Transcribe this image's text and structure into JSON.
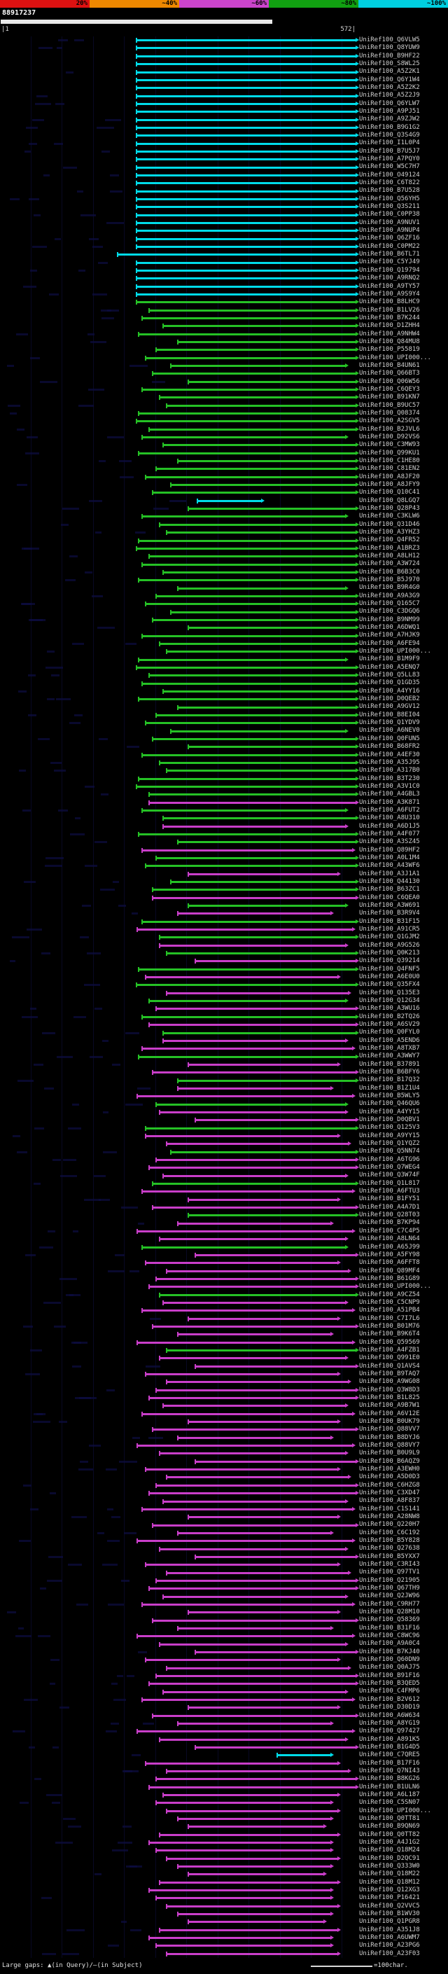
{
  "colorbar": {
    "segments": [
      {
        "label": "20%",
        "color": "#dd1111"
      },
      {
        "label": "~40%",
        "color": "#ee8800"
      },
      {
        "label": "~60%",
        "color": "#cc44cc"
      },
      {
        "label": "~80%",
        "color": "#11a011"
      },
      {
        "label": "~100%",
        "color": "#00cfe0"
      }
    ]
  },
  "header": {
    "query_id": "88917237",
    "ruler_start": "|1",
    "ruler_end": "572|"
  },
  "footer": {
    "gaps_note": "Large gaps: ▲(in Query)/—(in Subject)",
    "scale_note": "=100char."
  },
  "colors": {
    "c": "#00dbe8",
    "g": "#25c125",
    "m": "#c93ec9",
    "query": "#e9e9e9",
    "label": "#cfcfcf"
  },
  "chart_data": {
    "type": "bar",
    "orientation": "horizontal",
    "x_range": [
      1,
      572
    ],
    "grid_interval_chars": 50,
    "identity_scale": [
      {
        "max_pct": 20,
        "color": "red"
      },
      {
        "max_pct": 40,
        "color": "orange"
      },
      {
        "max_pct": 60,
        "color": "magenta"
      },
      {
        "max_pct": 80,
        "color": "green"
      },
      {
        "max_pct": 100,
        "color": "cyan"
      }
    ],
    "label_prefix": "UniRef100_",
    "hit_fields": [
      "id",
      "identity_bin",
      "query_start",
      "query_end"
    ],
    "hits": [
      [
        "Q6VLW5",
        "c",
        220,
        572
      ],
      [
        "Q8YUW9",
        "c",
        220,
        572
      ],
      [
        "B9HF22",
        "c",
        220,
        572
      ],
      [
        "S8WL25",
        "c",
        220,
        572
      ],
      [
        "A5Z2K1",
        "c",
        220,
        572
      ],
      [
        "Q6Y1W4",
        "c",
        220,
        572
      ],
      [
        "A5Z2K2",
        "c",
        220,
        572
      ],
      [
        "A5Z2J9",
        "c",
        220,
        572
      ],
      [
        "Q6YLW7",
        "c",
        220,
        572
      ],
      [
        "A9PJ51",
        "c",
        220,
        572
      ],
      [
        "A9ZJW2",
        "c",
        220,
        572
      ],
      [
        "B9G1G2",
        "c",
        220,
        572
      ],
      [
        "Q3S4G9",
        "c",
        220,
        572
      ],
      [
        "I1L0P4",
        "c",
        220,
        572
      ],
      [
        "B7U5J7",
        "c",
        220,
        572
      ],
      [
        "A7PQY0",
        "c",
        220,
        572
      ],
      [
        "W5C7H7",
        "c",
        220,
        572
      ],
      [
        "O49124",
        "c",
        220,
        572
      ],
      [
        "C6T822",
        "c",
        220,
        572
      ],
      [
        "B7U528",
        "c",
        220,
        572
      ],
      [
        "Q56YH5",
        "c",
        220,
        572
      ],
      [
        "Q3S211",
        "c",
        220,
        572
      ],
      [
        "C0PP38",
        "c",
        220,
        572
      ],
      [
        "A9NUV1",
        "c",
        220,
        572
      ],
      [
        "A9NUP4",
        "c",
        220,
        572
      ],
      [
        "Q6ZF16",
        "c",
        220,
        572
      ],
      [
        "C0PM22",
        "c",
        220,
        572
      ],
      [
        "B6TL71",
        "c",
        190,
        572
      ],
      [
        "C5YJ49",
        "c",
        220,
        572
      ],
      [
        "Q19794",
        "c",
        220,
        572
      ],
      [
        "A9RNQ2",
        "c",
        220,
        572
      ],
      [
        "A9TY57",
        "c",
        220,
        572
      ],
      [
        "A9S9Y4",
        "c",
        220,
        572
      ],
      [
        "B8LHC9",
        "g",
        220,
        572
      ],
      [
        "B1LV26",
        "g",
        240,
        572
      ],
      [
        "B7K244",
        "g",
        229,
        572
      ],
      [
        "D1ZHH4",
        "g",
        263,
        572
      ],
      [
        "A9NHW4",
        "g",
        223,
        572
      ],
      [
        "Q84MU8",
        "g",
        286,
        572
      ],
      [
        "P55819",
        "g",
        252,
        572
      ],
      [
        "UPI000...",
        "g",
        235,
        572
      ],
      [
        "B4UN61",
        "g",
        275,
        555
      ],
      [
        "Q66BT3",
        "g",
        246,
        572
      ],
      [
        "Q06W56",
        "g",
        303,
        572
      ],
      [
        "C6QEY3",
        "g",
        229,
        572
      ],
      [
        "B91KN7",
        "g",
        257,
        572
      ],
      [
        "B9UC57",
        "g",
        269,
        572
      ],
      [
        "Q08374",
        "g",
        223,
        572
      ],
      [
        "A2SGV5",
        "g",
        220,
        572
      ],
      [
        "B2JVL6",
        "g",
        240,
        572
      ],
      [
        "D92VS6",
        "g",
        229,
        555
      ],
      [
        "C3MW93",
        "g",
        263,
        572
      ],
      [
        "Q99KU1",
        "g",
        223,
        572
      ],
      [
        "C1HE80",
        "g",
        286,
        572
      ],
      [
        "C81EN2",
        "g",
        252,
        572
      ],
      [
        "A8JF20",
        "g",
        235,
        572
      ],
      [
        "A8JFY9",
        "g",
        275,
        572
      ],
      [
        "Q10C41",
        "g",
        246,
        572
      ],
      [
        "Q8LGQ7",
        "c",
        318,
        420
      ],
      [
        "Q28P43",
        "g",
        303,
        572
      ],
      [
        "C3KLW6",
        "g",
        229,
        555
      ],
      [
        "Q31D46",
        "g",
        257,
        572
      ],
      [
        "A3YHZ3",
        "g",
        269,
        572
      ],
      [
        "Q4FR52",
        "g",
        223,
        572
      ],
      [
        "A1BRZ3",
        "g",
        220,
        572
      ],
      [
        "A8LH12",
        "g",
        240,
        572
      ],
      [
        "A3W724",
        "g",
        229,
        572
      ],
      [
        "B6B3C0",
        "g",
        263,
        572
      ],
      [
        "B5J970",
        "g",
        223,
        572
      ],
      [
        "B9R4G0",
        "g",
        286,
        555
      ],
      [
        "A9A3G9",
        "g",
        252,
        572
      ],
      [
        "Q165C7",
        "g",
        235,
        572
      ],
      [
        "C3DGQ6",
        "g",
        275,
        572
      ],
      [
        "B9NM99",
        "g",
        246,
        572
      ],
      [
        "A6DWQ1",
        "g",
        303,
        572
      ],
      [
        "A7HJK9",
        "g",
        229,
        572
      ],
      [
        "A6FE94",
        "g",
        257,
        572
      ],
      [
        "UPI000...",
        "g",
        269,
        572
      ],
      [
        "B1M9F9",
        "g",
        223,
        555
      ],
      [
        "A5ENQ7",
        "g",
        220,
        572
      ],
      [
        "Q5LL83",
        "g",
        240,
        572
      ],
      [
        "Q1GD35",
        "g",
        229,
        572
      ],
      [
        "A4YY16",
        "g",
        263,
        572
      ],
      [
        "D0QEB2",
        "g",
        223,
        572
      ],
      [
        "A9GV12",
        "g",
        286,
        572
      ],
      [
        "B8EI04",
        "g",
        252,
        572
      ],
      [
        "Q1YDV9",
        "g",
        235,
        572
      ],
      [
        "A6NEV0",
        "g",
        275,
        555
      ],
      [
        "Q0FUN5",
        "g",
        246,
        572
      ],
      [
        "B68FR2",
        "g",
        303,
        572
      ],
      [
        "A4EF30",
        "g",
        229,
        572
      ],
      [
        "A35J95",
        "g",
        257,
        572
      ],
      [
        "A317B0",
        "g",
        269,
        572
      ],
      [
        "B3T230",
        "g",
        223,
        572
      ],
      [
        "A3V1C0",
        "g",
        220,
        572
      ],
      [
        "A4GBL3",
        "g",
        240,
        572
      ],
      [
        "A3K871",
        "m",
        240,
        572
      ],
      [
        "A6FUT2",
        "g",
        229,
        555
      ],
      [
        "A8U310",
        "g",
        263,
        572
      ],
      [
        "A6D1J5",
        "m",
        263,
        555
      ],
      [
        "A4F077",
        "g",
        223,
        572
      ],
      [
        "A3SZ45",
        "g",
        286,
        572
      ],
      [
        "Q89HF2",
        "m",
        229,
        566
      ],
      [
        "A0L1M4",
        "g",
        252,
        572
      ],
      [
        "A43WF6",
        "g",
        235,
        572
      ],
      [
        "A3J1A1",
        "m",
        303,
        543
      ],
      [
        "Q44130",
        "g",
        275,
        572
      ],
      [
        "B63ZC1",
        "g",
        246,
        572
      ],
      [
        "C6QEA0",
        "m",
        246,
        572
      ],
      [
        "A3W691",
        "g",
        303,
        555
      ],
      [
        "B3R9V4",
        "m",
        286,
        532
      ],
      [
        "B31F15",
        "g",
        229,
        572
      ],
      [
        "A91CR5",
        "m",
        221,
        566
      ],
      [
        "Q1GJM2",
        "g",
        257,
        572
      ],
      [
        "A9G526",
        "m",
        257,
        555
      ],
      [
        "Q0K213",
        "g",
        269,
        572
      ],
      [
        "Q39214",
        "m",
        315,
        572
      ],
      [
        "Q4FNF5",
        "g",
        223,
        572
      ],
      [
        "A6E0U0",
        "m",
        235,
        543
      ],
      [
        "Q35FX4",
        "g",
        220,
        572
      ],
      [
        "Q135E3",
        "m",
        269,
        560
      ],
      [
        "Q12G34",
        "g",
        240,
        555
      ],
      [
        "A3WU16",
        "m",
        252,
        572
      ],
      [
        "B2TQ26",
        "g",
        229,
        572
      ],
      [
        "A6SV29",
        "m",
        240,
        572
      ],
      [
        "Q0FYL0",
        "g",
        263,
        572
      ],
      [
        "A5END6",
        "m",
        263,
        555
      ],
      [
        "A8TXB7",
        "m",
        229,
        566
      ],
      [
        "A3WWY7",
        "g",
        223,
        572
      ],
      [
        "B37891",
        "m",
        303,
        543
      ],
      [
        "B6BFY6",
        "m",
        246,
        572
      ],
      [
        "B17Q32",
        "g",
        286,
        572
      ],
      [
        "B1Z1U4",
        "m",
        286,
        532
      ],
      [
        "B5WLY5",
        "m",
        221,
        566
      ],
      [
        "Q46QU6",
        "g",
        252,
        555
      ],
      [
        "A4YY15",
        "m",
        257,
        555
      ],
      [
        "D0QBV1",
        "m",
        315,
        572
      ],
      [
        "Q125V3",
        "g",
        235,
        572
      ],
      [
        "A9YY15",
        "m",
        235,
        543
      ],
      [
        "Q1YQZ2",
        "m",
        269,
        560
      ],
      [
        "Q5NN74",
        "g",
        275,
        572
      ],
      [
        "A6TG96",
        "m",
        252,
        572
      ],
      [
        "Q7WEG4",
        "m",
        240,
        572
      ],
      [
        "Q3W74F",
        "m",
        263,
        555
      ],
      [
        "Q1L817",
        "g",
        246,
        572
      ],
      [
        "A6FTU3",
        "m",
        229,
        566
      ],
      [
        "B1FY51",
        "m",
        303,
        543
      ],
      [
        "A4A7D1",
        "m",
        246,
        572
      ],
      [
        "Q28T03",
        "g",
        303,
        572
      ],
      [
        "B7KP94",
        "m",
        286,
        532
      ],
      [
        "C7C4P5",
        "m",
        221,
        566
      ],
      [
        "A8LN64",
        "m",
        257,
        555
      ],
      [
        "A65J99",
        "g",
        229,
        555
      ],
      [
        "A5FY98",
        "m",
        315,
        572
      ],
      [
        "A6FFT8",
        "m",
        235,
        543
      ],
      [
        "Q89MF4",
        "m",
        269,
        560
      ],
      [
        "B61G89",
        "m",
        252,
        572
      ],
      [
        "UPI000...",
        "m",
        240,
        572
      ],
      [
        "A9CZ54",
        "g",
        257,
        572
      ],
      [
        "C5CNP9",
        "m",
        263,
        555
      ],
      [
        "A51PB4",
        "m",
        229,
        566
      ],
      [
        "C7I7L6",
        "m",
        303,
        543
      ],
      [
        "B01M76",
        "m",
        246,
        572
      ],
      [
        "B9K6T4",
        "m",
        286,
        532
      ],
      [
        "Q59569",
        "m",
        221,
        566
      ],
      [
        "A4FZB1",
        "g",
        269,
        572
      ],
      [
        "Q991E0",
        "m",
        257,
        555
      ],
      [
        "Q1AVS4",
        "m",
        315,
        572
      ],
      [
        "B9TAQ7",
        "m",
        235,
        543
      ],
      [
        "A9WG08",
        "m",
        269,
        560
      ],
      [
        "Q3W8D3",
        "m",
        252,
        572
      ],
      [
        "B1L825",
        "m",
        240,
        572
      ],
      [
        "A9B7W1",
        "m",
        263,
        555
      ],
      [
        "A6V12E",
        "m",
        229,
        566
      ],
      [
        "B0UK79",
        "m",
        303,
        543
      ],
      [
        "Q88VV7",
        "m",
        246,
        572
      ],
      [
        "B8DYJ6",
        "m",
        286,
        532
      ],
      [
        "Q88VY7",
        "m",
        221,
        566
      ],
      [
        "B0U9L9",
        "m",
        257,
        555
      ],
      [
        "B6AQZ9",
        "m",
        315,
        572
      ],
      [
        "A3EWH0",
        "m",
        235,
        543
      ],
      [
        "A5D0D3",
        "m",
        269,
        560
      ],
      [
        "C6HZG8",
        "m",
        252,
        572
      ],
      [
        "C3XD47",
        "m",
        240,
        572
      ],
      [
        "A8F837",
        "m",
        263,
        555
      ],
      [
        "C1S141",
        "m",
        229,
        566
      ],
      [
        "A28NW8",
        "m",
        303,
        543
      ],
      [
        "Q220H7",
        "m",
        246,
        572
      ],
      [
        "C6C192",
        "m",
        286,
        532
      ],
      [
        "B5Y828",
        "m",
        221,
        566
      ],
      [
        "Q27638",
        "m",
        257,
        555
      ],
      [
        "B5YXX7",
        "m",
        315,
        572
      ],
      [
        "C3RI43",
        "m",
        235,
        543
      ],
      [
        "Q97TV1",
        "m",
        269,
        560
      ],
      [
        "Q21905",
        "m",
        252,
        572
      ],
      [
        "Q67TH9",
        "m",
        240,
        572
      ],
      [
        "Q2JW96",
        "m",
        263,
        555
      ],
      [
        "C9RH77",
        "m",
        229,
        566
      ],
      [
        "Q28M10",
        "m",
        303,
        543
      ],
      [
        "Q58369",
        "m",
        246,
        572
      ],
      [
        "B31F16",
        "m",
        286,
        532
      ],
      [
        "C8WC96",
        "m",
        221,
        566
      ],
      [
        "A9A0C4",
        "m",
        257,
        555
      ],
      [
        "B7KJ40",
        "m",
        315,
        572
      ],
      [
        "Q60DN9",
        "m",
        235,
        543
      ],
      [
        "Q0AJ75",
        "m",
        269,
        560
      ],
      [
        "B91F16",
        "m",
        252,
        572
      ],
      [
        "B3QED5",
        "m",
        240,
        572
      ],
      [
        "C4FMP6",
        "m",
        263,
        555
      ],
      [
        "B2V612",
        "m",
        229,
        566
      ],
      [
        "D30D19",
        "m",
        303,
        543
      ],
      [
        "A6W634",
        "m",
        246,
        572
      ],
      [
        "A8YG19",
        "m",
        286,
        532
      ],
      [
        "Q97427",
        "m",
        221,
        566
      ],
      [
        "A891K5",
        "m",
        257,
        555
      ],
      [
        "B1G4D5",
        "m",
        315,
        572
      ],
      [
        "C7QRE5",
        "c",
        446,
        532
      ],
      [
        "B17F16",
        "m",
        235,
        543
      ],
      [
        "Q7NI43",
        "m",
        269,
        560
      ],
      [
        "B8KG26",
        "m",
        252,
        572
      ],
      [
        "B1ULN6",
        "m",
        240,
        572
      ],
      [
        "A6L187",
        "m",
        263,
        543
      ],
      [
        "C5SN07",
        "m",
        252,
        532
      ],
      [
        "UPI000...",
        "m",
        269,
        543
      ],
      [
        "Q0TT81",
        "m",
        286,
        532
      ],
      [
        "B9QN69",
        "m",
        303,
        520
      ],
      [
        "Q0TT82",
        "m",
        257,
        543
      ],
      [
        "A4J1G2",
        "m",
        240,
        532
      ],
      [
        "Q18M24",
        "m",
        252,
        532
      ],
      [
        "D2QC91",
        "m",
        269,
        543
      ],
      [
        "Q333W0",
        "m",
        286,
        532
      ],
      [
        "Q18M22",
        "m",
        303,
        520
      ],
      [
        "Q18M12",
        "m",
        257,
        543
      ],
      [
        "Q12XG3",
        "m",
        240,
        532
      ],
      [
        "P16421",
        "m",
        252,
        532
      ],
      [
        "Q2VVC5",
        "m",
        269,
        543
      ],
      [
        "B1WV30",
        "m",
        286,
        532
      ],
      [
        "Q1PGR8",
        "m",
        303,
        520
      ],
      [
        "A351J8",
        "m",
        257,
        543
      ],
      [
        "A6UWM7",
        "m",
        240,
        532
      ],
      [
        "A23PG6",
        "m",
        252,
        532
      ],
      [
        "A23F03",
        "m",
        269,
        543
      ]
    ]
  }
}
